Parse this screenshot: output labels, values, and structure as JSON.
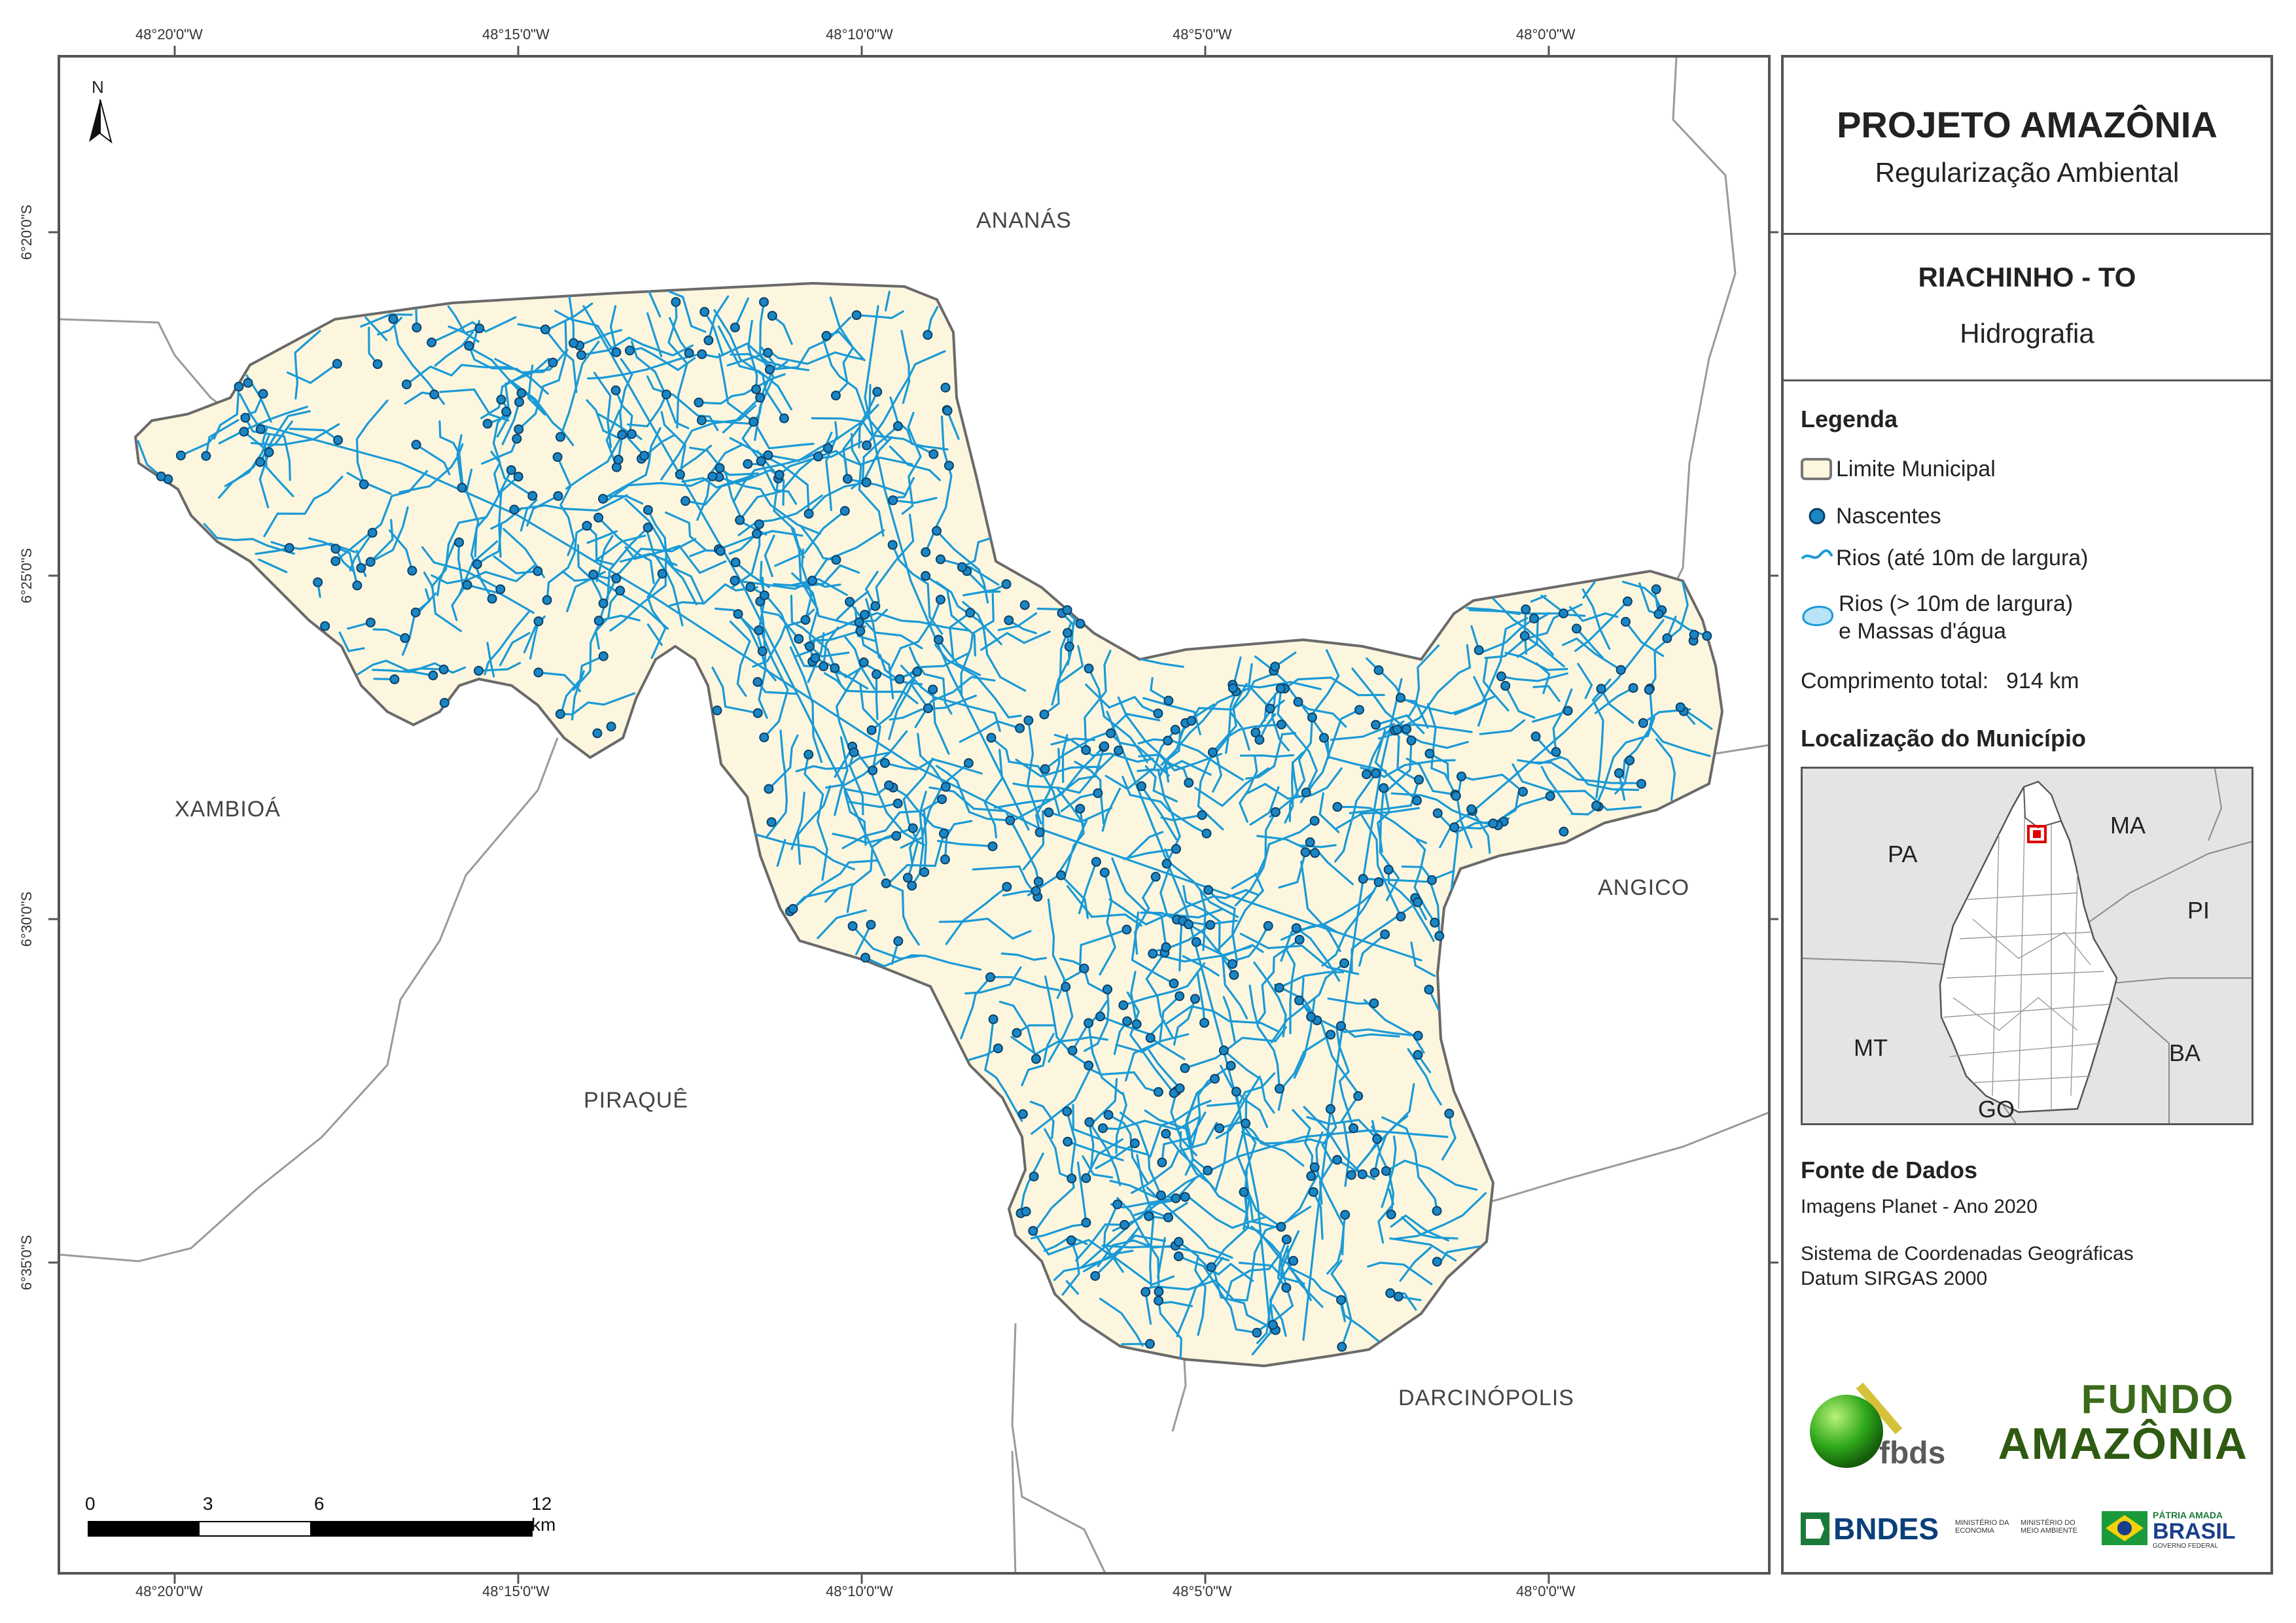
{
  "panel": {
    "title": "PROJETO AMAZÔNIA",
    "subtitle": "Regularização Ambiental",
    "municipality": "RIACHINHO - TO",
    "theme": "Hidrografia"
  },
  "legend": {
    "heading": "Legenda",
    "items": [
      {
        "label": "Limite Municipal",
        "symbol": "polygon-outline"
      },
      {
        "label": "Nascentes",
        "symbol": "blue-dot"
      },
      {
        "label": "Rios (até 10m de largura)",
        "symbol": "blue-line"
      },
      {
        "label": "Rios (> 10m de largura)",
        "label2": "e Massas d'água",
        "symbol": "water-polygon"
      }
    ],
    "total_label": "Comprimento total:",
    "total_value": "914 km"
  },
  "location": {
    "heading": "Localização do Município",
    "labels": [
      "PA",
      "MA",
      "PI",
      "MT",
      "BA",
      "GO"
    ]
  },
  "sources": {
    "heading": "Fonte de Dados",
    "line1": "Imagens Planet - Ano 2020",
    "line2": "Sistema de Coordenadas Geográficas",
    "line3": "Datum SIRGAS 2000"
  },
  "map": {
    "north": "N",
    "neighbors": [
      "ANANÁS",
      "XAMBIOÁ",
      "ANGICO",
      "PIRAQUÊ",
      "DARCINÓPOLIS"
    ],
    "lon_ticks": [
      "48°20'0\"W",
      "48°15'0\"W",
      "48°10'0\"W",
      "48°5'0\"W",
      "48°0'0\"W"
    ],
    "lat_ticks": [
      "6°20'0\"S",
      "6°25'0\"S",
      "6°30'0\"S",
      "6°35'0\"S"
    ],
    "scale_labels": [
      "0",
      "3",
      "6",
      "12 km"
    ]
  },
  "logos": {
    "fbds": "fbds",
    "fundo1": "FUNDO",
    "fundo2": "AMAZÔNIA",
    "bndes": "BNDES",
    "min1": "MINISTÉRIO DA ECONOMIA",
    "min2": "MINISTÉRIO DO MEIO AMBIENTE",
    "patria": "PÁTRIA AMADA",
    "brasil": "BRASIL",
    "gov": "GOVERNO FEDERAL"
  },
  "colors": {
    "municipality_fill": "#fdf6df",
    "river": "#1a9ad6",
    "spring": "#1a86c4",
    "frame": "#555555",
    "location_bg": "#e4e4e4",
    "highlight": "#e00000"
  }
}
